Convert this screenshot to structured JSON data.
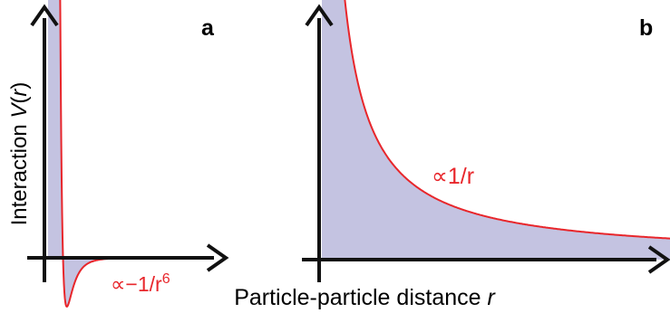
{
  "panels": [
    {
      "letter": "a",
      "annotation": "∝−1/r",
      "annotation_exponent": "6"
    },
    {
      "letter": "b",
      "annotation": "∝1/r"
    }
  ],
  "y_label_prefix": "Interaction ",
  "y_label_var": "V",
  "y_label_open": "(",
  "y_label_arg": "r",
  "y_label_close": ")",
  "x_label_prefix": "Particle-particle distance ",
  "x_label_var": "r",
  "colors": {
    "curve": "#e8262b",
    "fill": "#c4c3e1",
    "axis": "#111111"
  }
}
